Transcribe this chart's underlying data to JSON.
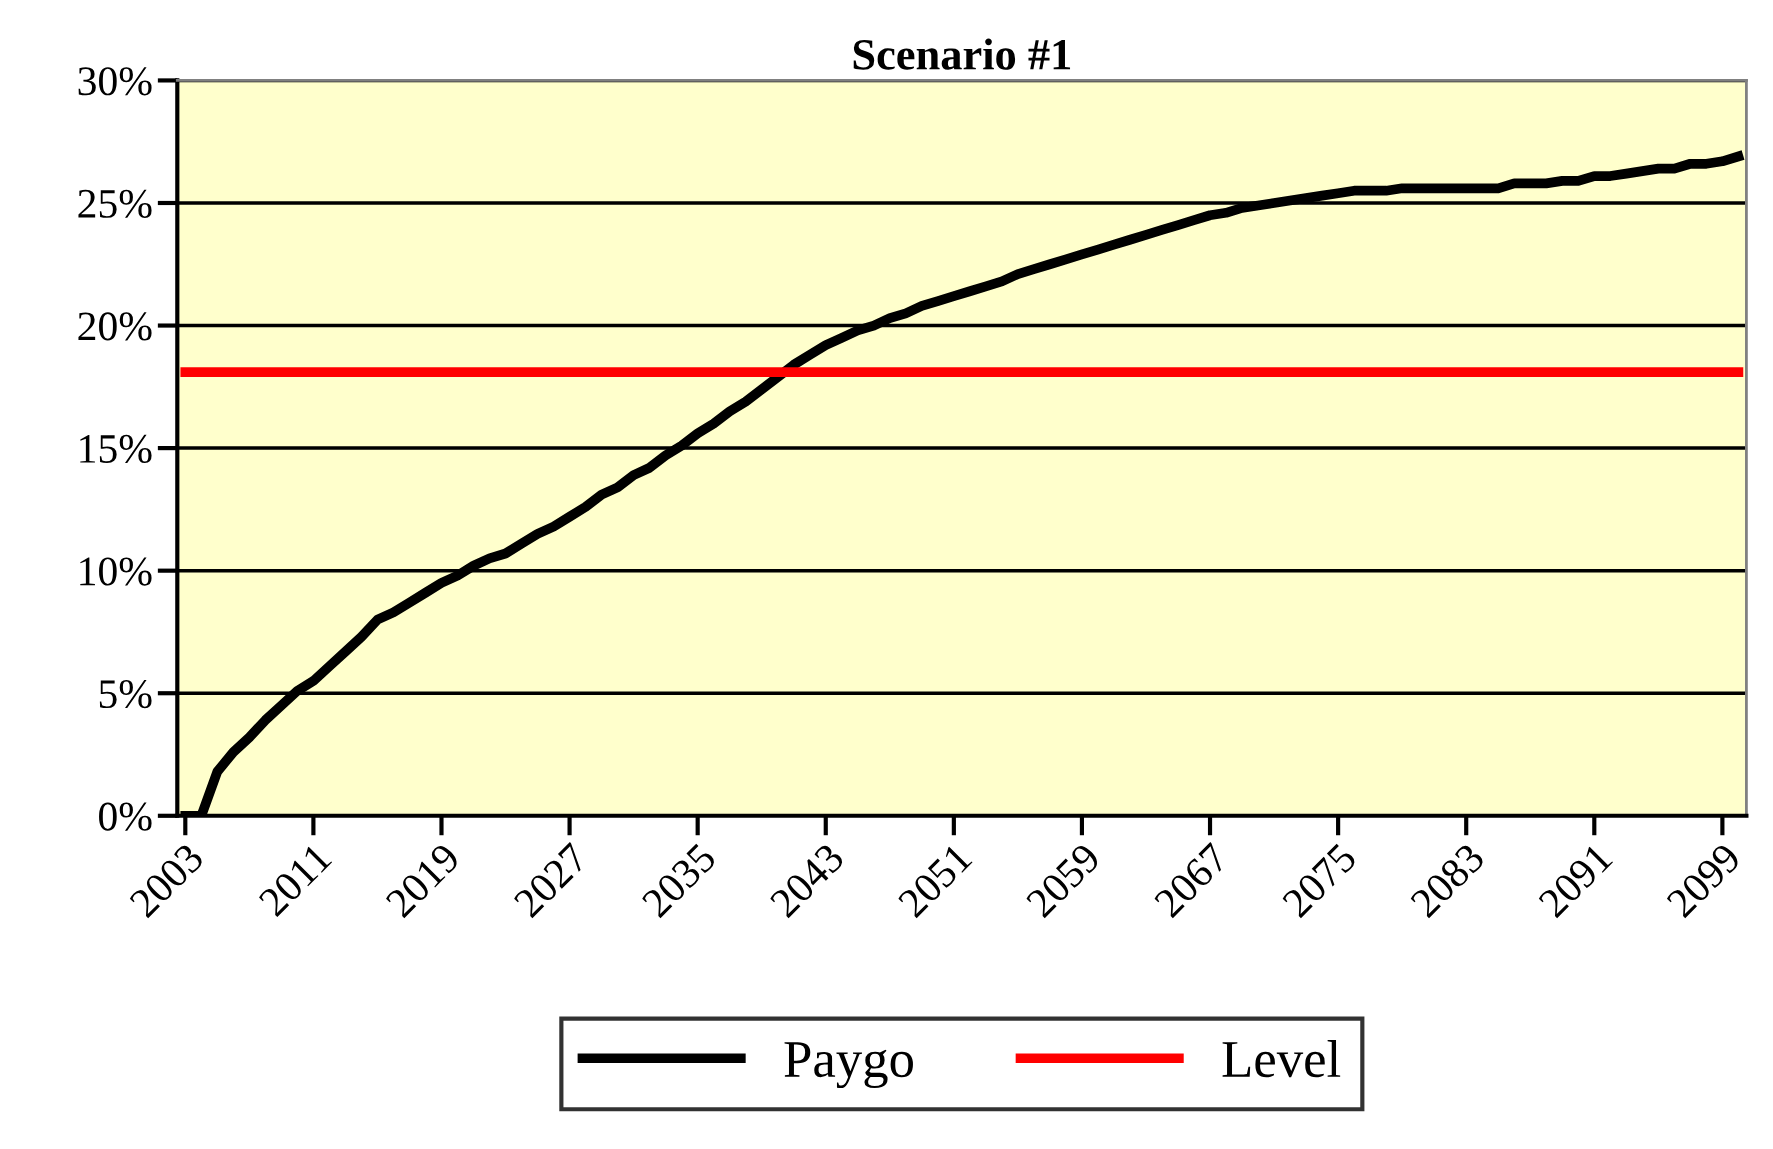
{
  "chart_data": {
    "type": "line",
    "title": "Scenario #1",
    "categories": [
      "2003",
      null,
      null,
      null,
      null,
      null,
      null,
      null,
      "2011",
      null,
      null,
      null,
      null,
      null,
      null,
      null,
      "2019",
      null,
      null,
      null,
      null,
      null,
      null,
      null,
      "2027",
      null,
      null,
      null,
      null,
      null,
      null,
      null,
      "2035",
      null,
      null,
      null,
      null,
      null,
      null,
      null,
      "2043",
      null,
      null,
      null,
      null,
      null,
      null,
      null,
      "2051",
      null,
      null,
      null,
      null,
      null,
      null,
      null,
      "2059",
      null,
      null,
      null,
      null,
      null,
      null,
      null,
      "2067",
      null,
      null,
      null,
      null,
      null,
      null,
      null,
      "2075",
      null,
      null,
      null,
      null,
      null,
      null,
      null,
      "2083",
      null,
      null,
      null,
      null,
      null,
      null,
      null,
      "2091",
      null,
      null,
      null,
      null,
      null,
      null,
      null,
      "2099",
      null
    ],
    "series": [
      {
        "name": "Paygo",
        "color": "#000000",
        "values": [
          0,
          0,
          1.8,
          2.6,
          3.2,
          3.9,
          4.5,
          5.1,
          5.5,
          6.1,
          6.7,
          7.3,
          8.0,
          8.3,
          8.7,
          9.1,
          9.5,
          9.8,
          10.2,
          10.5,
          10.7,
          11.1,
          11.5,
          11.8,
          12.2,
          12.6,
          13.1,
          13.4,
          13.9,
          14.2,
          14.7,
          15.1,
          15.6,
          16.0,
          16.5,
          16.9,
          17.4,
          17.9,
          18.4,
          18.8,
          19.2,
          19.5,
          19.8,
          20.0,
          20.3,
          20.5,
          20.8,
          21.0,
          21.2,
          21.4,
          21.6,
          21.8,
          22.1,
          22.3,
          22.5,
          22.7,
          22.9,
          23.1,
          23.3,
          23.5,
          23.7,
          23.9,
          24.1,
          24.3,
          24.5,
          24.6,
          24.8,
          24.9,
          25.0,
          25.1,
          25.2,
          25.3,
          25.4,
          25.5,
          25.5,
          25.5,
          25.6,
          25.6,
          25.6,
          25.6,
          25.6,
          25.6,
          25.6,
          25.8,
          25.8,
          25.8,
          25.9,
          25.9,
          26.1,
          26.1,
          26.2,
          26.3,
          26.4,
          26.4,
          26.6,
          26.6,
          26.7,
          26.9
        ]
      },
      {
        "name": "Level",
        "color": "#ff0000",
        "values": [
          18.1,
          18.1,
          18.1,
          18.1,
          18.1,
          18.1,
          18.1,
          18.1,
          18.1,
          18.1,
          18.1,
          18.1,
          18.1,
          18.1,
          18.1,
          18.1,
          18.1,
          18.1,
          18.1,
          18.1,
          18.1,
          18.1,
          18.1,
          18.1,
          18.1,
          18.1,
          18.1,
          18.1,
          18.1,
          18.1,
          18.1,
          18.1,
          18.1,
          18.1,
          18.1,
          18.1,
          18.1,
          18.1,
          18.1,
          18.1,
          18.1,
          18.1,
          18.1,
          18.1,
          18.1,
          18.1,
          18.1,
          18.1,
          18.1,
          18.1,
          18.1,
          18.1,
          18.1,
          18.1,
          18.1,
          18.1,
          18.1,
          18.1,
          18.1,
          18.1,
          18.1,
          18.1,
          18.1,
          18.1,
          18.1,
          18.1,
          18.1,
          18.1,
          18.1,
          18.1,
          18.1,
          18.1,
          18.1,
          18.1,
          18.1,
          18.1,
          18.1,
          18.1,
          18.1,
          18.1,
          18.1,
          18.1,
          18.1,
          18.1,
          18.1,
          18.1,
          18.1,
          18.1,
          18.1,
          18.1,
          18.1,
          18.1,
          18.1,
          18.1,
          18.1,
          18.1,
          18.1,
          18.1
        ]
      }
    ],
    "ylim": [
      0,
      30
    ],
    "yticks": [
      {
        "value": 0,
        "label": "0%"
      },
      {
        "value": 5,
        "label": "5%"
      },
      {
        "value": 10,
        "label": "10%"
      },
      {
        "value": 15,
        "label": "15%"
      },
      {
        "value": 20,
        "label": "20%"
      },
      {
        "value": 25,
        "label": "25%"
      },
      {
        "value": 30,
        "label": "30%"
      }
    ],
    "grid": "y",
    "legend": "bottom",
    "marker": "none",
    "line_style": "solid"
  }
}
